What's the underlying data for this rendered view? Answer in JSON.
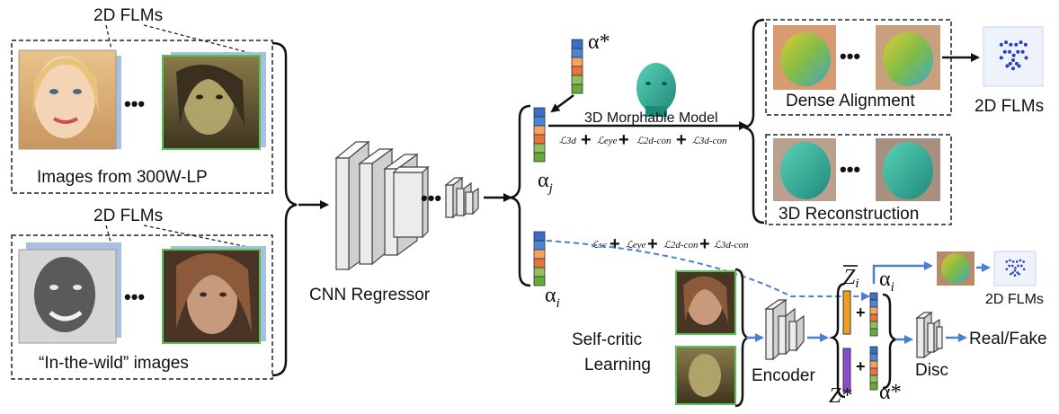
{
  "labels": {
    "flms_top": "2D FLMs",
    "images_300w": "Images from 300W-LP",
    "flms_mid": "2D FLMs",
    "in_the_wild": "“In-the-wild” images",
    "cnn_regressor": "CNN Regressor",
    "morphable_model": "3D Morphable Model",
    "dense_alignment": "Dense Alignment",
    "reconstruction": "3D Reconstruction",
    "flms_right": "2D FLMs",
    "flms_small": "2D FLMs",
    "self_critic": "Self-critic",
    "learning": "Learning",
    "encoder": "Encoder",
    "disc": "Disc",
    "real_fake": "Real/Fake"
  },
  "symbols": {
    "alpha_star_top": "α*",
    "alpha_j": "α",
    "alpha_j_sub": "j",
    "alpha_i": "α",
    "alpha_i_sub": "i",
    "alpha_i_right": "α",
    "alpha_i_right_sub": "i",
    "z_bar": "Z",
    "z_bar_sub": "i",
    "z_star": "Z*",
    "alpha_star_bottom": "α*"
  },
  "losses": {
    "top": [
      "ℒ3d",
      "ℒeye",
      "ℒ2d-con",
      "ℒ3d-con"
    ],
    "bottom": [
      "ℒsc",
      "ℒeye",
      "ℒ2d-con",
      "ℒ3d-con"
    ],
    "plus": "+"
  },
  "ellipsis": "•••",
  "colors": {
    "arrow_blue": "#4a7fd4",
    "photo_border_green": "#55c455",
    "photo_back_blue": "#a8bfe0",
    "z_bar_color": "#f0a020",
    "z_star_color": "#8a4bd0",
    "landmark_dot": "#2a3fc0"
  },
  "param_vector_colors": [
    "#3a6fc8",
    "#4a86d8",
    "#f4a460",
    "#e8743b",
    "#8dc060",
    "#6aaa3a"
  ]
}
